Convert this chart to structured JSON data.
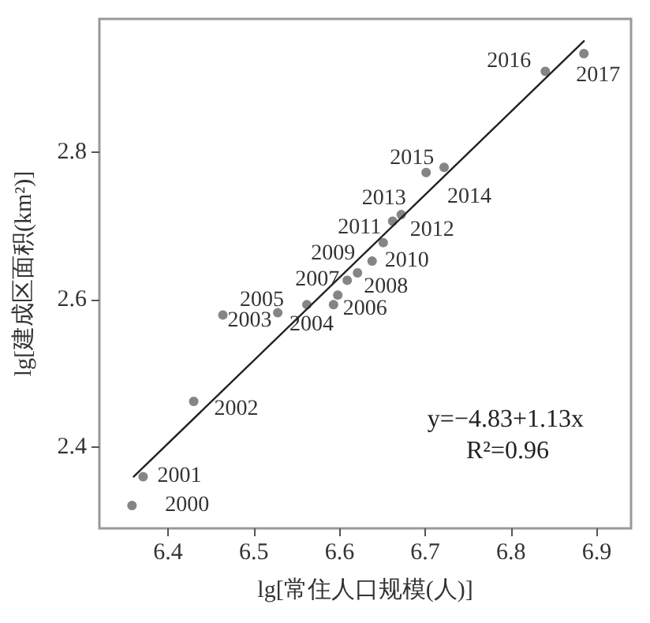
{
  "chart_data": {
    "type": "scatter",
    "xlabel": "lg[常住人口规模(人)]",
    "ylabel": "lg[建成区面积(km²)]",
    "xlim": [
      6.32,
      6.94
    ],
    "xticks": [
      6.4,
      6.5,
      6.6,
      6.7,
      6.8,
      6.9
    ],
    "ylim": [
      2.29,
      2.98
    ],
    "yticks": [
      2.4,
      2.6,
      2.8
    ],
    "grid": false,
    "marker": "circle",
    "annotations": [
      "y=−4.83+1.13x",
      "R²=0.96",
      {
        "text": "2000",
        "x": 6.358,
        "y": 2.321
      },
      {
        "text": "2001",
        "x": 6.371,
        "y": 2.36
      },
      {
        "text": "2002",
        "x": 6.43,
        "y": 2.462
      },
      {
        "text": "2003",
        "x": 6.464,
        "y": 2.579
      },
      {
        "text": "2004",
        "x": 6.562,
        "y": 2.593
      },
      {
        "text": "2005",
        "x": 6.528,
        "y": 2.582
      },
      {
        "text": "2006",
        "x": 6.593,
        "y": 2.593
      },
      {
        "text": "2007",
        "x": 6.609,
        "y": 2.626
      },
      {
        "text": "2008",
        "x": 6.621,
        "y": 2.636
      },
      {
        "text": "2009",
        "x": 6.598,
        "y": 2.606
      },
      {
        "text": "2010",
        "x": 6.638,
        "y": 2.652
      },
      {
        "text": "2011",
        "x": 6.662,
        "y": 2.706
      },
      {
        "text": "2012",
        "x": 6.651,
        "y": 2.677
      },
      {
        "text": "2013",
        "x": 6.672,
        "y": 2.715
      },
      {
        "text": "2014",
        "x": 6.722,
        "y": 2.779
      },
      {
        "text": "2015",
        "x": 6.701,
        "y": 2.772
      },
      {
        "text": "2016",
        "x": 6.84,
        "y": 2.909
      },
      {
        "text": "2017",
        "x": 6.885,
        "y": 2.933
      }
    ],
    "series": [
      {
        "type": "scatter",
        "color": "#666666",
        "x": [
          6.358,
          6.371,
          6.43,
          6.464,
          6.562,
          6.528,
          6.593,
          6.609,
          6.621,
          6.598,
          6.638,
          6.662,
          6.651,
          6.672,
          6.722,
          6.701,
          6.84,
          6.885
        ],
        "values": [
          2.321,
          2.36,
          2.462,
          2.579,
          2.593,
          2.582,
          2.593,
          2.626,
          2.636,
          2.606,
          2.652,
          2.706,
          2.677,
          2.715,
          2.779,
          2.772,
          2.909,
          2.933
        ]
      },
      {
        "type": "line",
        "color": "#222222",
        "marker": "none",
        "x": [
          6.36,
          6.885
        ],
        "values": [
          2.36,
          2.95
        ]
      }
    ]
  }
}
